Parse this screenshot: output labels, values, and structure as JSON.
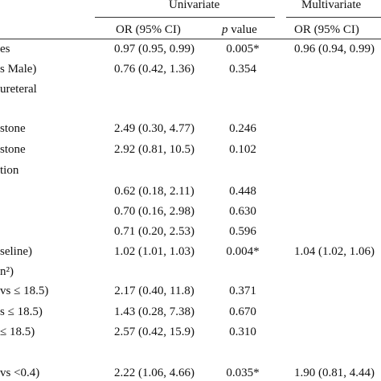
{
  "header": {
    "univariate": "Univariate",
    "multivariate": "Multivariate",
    "or_col": "OR (95% CI)",
    "p_prefix": "p",
    "p_suffix": " value",
    "mv_or_col": "OR (95% CI)"
  },
  "rows": [
    {
      "label": "es",
      "or": "0.97 (0.95, 0.99)",
      "p": "0.005*",
      "mv": "0.96 (0.94, 0.99)"
    },
    {
      "label": "s Male)",
      "or": "0.76 (0.42, 1.36)",
      "p": "0.354",
      "mv": ""
    },
    {
      "label": "ureteral",
      "or": "",
      "p": "",
      "mv": ""
    },
    {
      "label": "stone",
      "or": "2.49 (0.30, 4.77)",
      "p": "0.246",
      "mv": ""
    },
    {
      "label": "stone",
      "or": "2.92 (0.81, 10.5)",
      "p": "0.102",
      "mv": ""
    },
    {
      "label": "tion",
      "or": "",
      "p": "",
      "mv": ""
    },
    {
      "label": "",
      "or": "0.62 (0.18, 2.11)",
      "p": "0.448",
      "mv": ""
    },
    {
      "label": "",
      "or": "0.70 (0.16, 2.98)",
      "p": "0.630",
      "mv": ""
    },
    {
      "label": "",
      "or": "0.71 (0.20, 2.53)",
      "p": "0.596",
      "mv": ""
    },
    {
      "label": "seline)",
      "or": "1.02 (1.01, 1.03)",
      "p": "0.004*",
      "mv": "1.04 (1.02, 1.06)"
    },
    {
      "label": "n²)",
      "or": "",
      "p": "",
      "mv": ""
    },
    {
      "label": "vs ≤ 18.5)",
      "or": "2.17 (0.40, 11.8)",
      "p": "0.371",
      "mv": ""
    },
    {
      "label": "s ≤ 18.5)",
      "or": "1.43 (0.28, 7.38)",
      "p": "0.670",
      "mv": ""
    },
    {
      "label": "≤ 18.5)",
      "or": "2.57 (0.42, 15.9)",
      "p": "0.310",
      "mv": ""
    },
    {
      "label": "vs <0.4)",
      "or": "2.22 (1.06, 4.66)",
      "p": "0.035*",
      "mv": "1.90 (0.81, 4.44)"
    }
  ]
}
